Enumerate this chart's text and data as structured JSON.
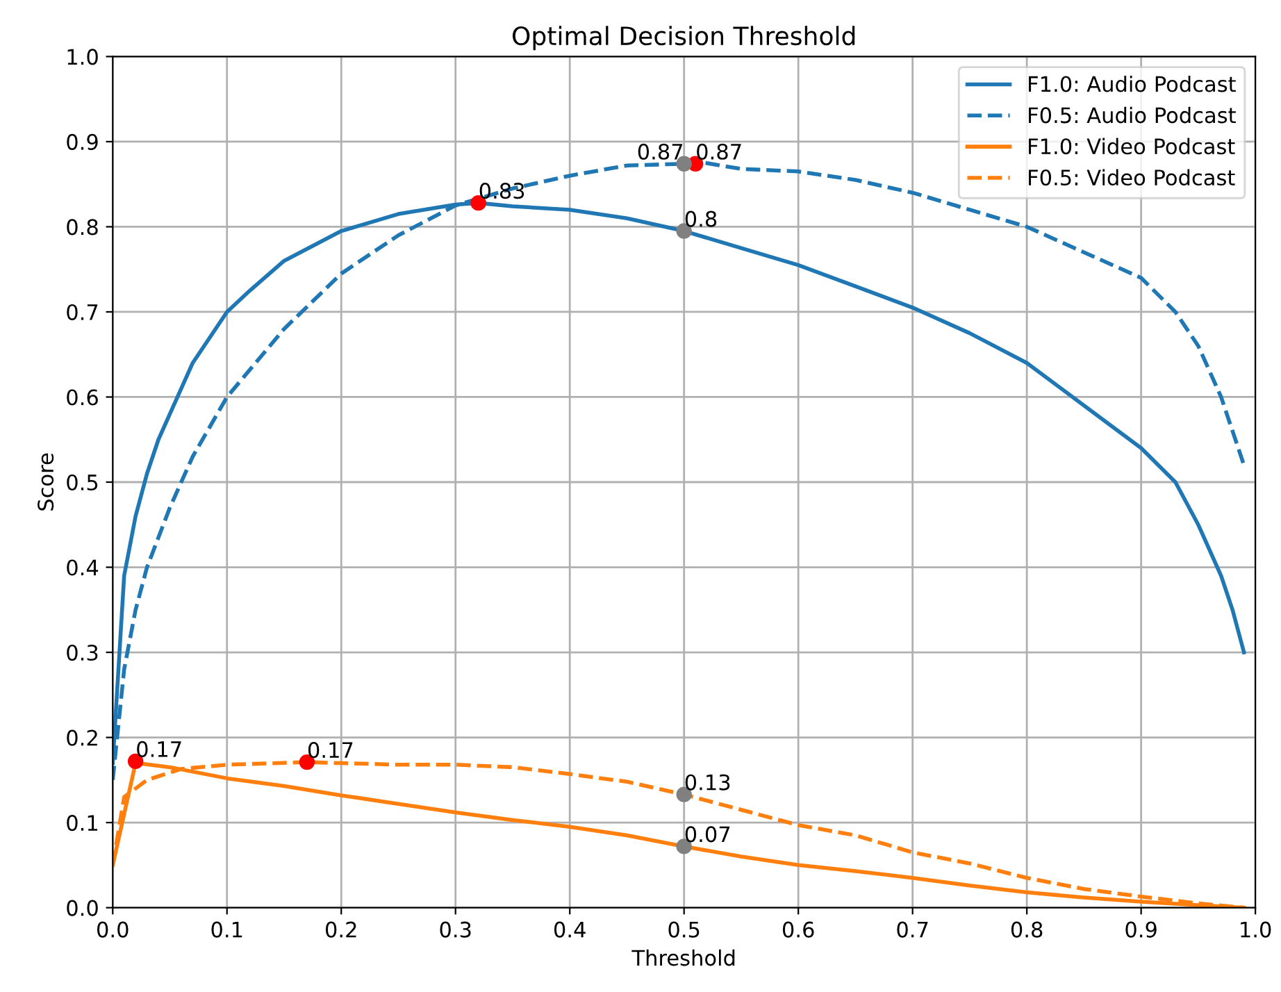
{
  "chart_data": {
    "type": "line",
    "title": "Optimal Decision Threshold",
    "xlabel": "Threshold",
    "ylabel": "Score",
    "xlim": [
      0,
      1
    ],
    "ylim": [
      0,
      1
    ],
    "xticks": [
      {
        "value": 0,
        "label": "0.0"
      },
      0.1,
      0.2,
      0.3,
      0.4,
      0.5,
      0.6,
      0.7,
      0.8,
      0.9,
      {
        "value": 1,
        "label": "1.0"
      }
    ],
    "yticks": [
      {
        "value": 0,
        "label": "0.0"
      },
      0.1,
      0.2,
      0.3,
      0.4,
      0.5,
      0.6,
      0.7,
      0.8,
      0.9,
      {
        "value": 1,
        "label": "1.0"
      }
    ],
    "grid": true,
    "legend": "top right",
    "marker": "none",
    "series": [
      {
        "name": "F1.0: Audio Podcast",
        "color": "#1f77b4",
        "line_style": "solid",
        "x": [
          0,
          0.01,
          0.02,
          0.03,
          0.04,
          0.05,
          0.06,
          0.07,
          0.08,
          0.1,
          0.12,
          0.15,
          0.2,
          0.25,
          0.3,
          0.32,
          0.35,
          0.4,
          0.45,
          0.5,
          0.55,
          0.6,
          0.65,
          0.7,
          0.75,
          0.8,
          0.85,
          0.9,
          0.93,
          0.95,
          0.97,
          0.98,
          0.99
        ],
        "values": [
          0.17,
          0.39,
          0.46,
          0.51,
          0.55,
          0.58,
          0.61,
          0.64,
          0.66,
          0.7,
          0.725,
          0.76,
          0.795,
          0.815,
          0.826,
          0.828,
          0.824,
          0.82,
          0.81,
          0.795,
          0.775,
          0.755,
          0.73,
          0.705,
          0.675,
          0.64,
          0.59,
          0.54,
          0.5,
          0.45,
          0.39,
          0.35,
          0.3
        ]
      },
      {
        "name": "F0.5: Audio Podcast",
        "color": "#1f77b4",
        "line_style": "dashed",
        "x": [
          0,
          0.01,
          0.02,
          0.03,
          0.05,
          0.07,
          0.1,
          0.15,
          0.2,
          0.25,
          0.3,
          0.35,
          0.4,
          0.45,
          0.5,
          0.51,
          0.55,
          0.6,
          0.65,
          0.7,
          0.75,
          0.8,
          0.85,
          0.9,
          0.93,
          0.95,
          0.97,
          0.99
        ],
        "values": [
          0.15,
          0.28,
          0.35,
          0.4,
          0.47,
          0.53,
          0.6,
          0.68,
          0.745,
          0.79,
          0.825,
          0.845,
          0.86,
          0.872,
          0.874,
          0.877,
          0.868,
          0.865,
          0.855,
          0.84,
          0.82,
          0.8,
          0.77,
          0.74,
          0.7,
          0.66,
          0.6,
          0.52
        ]
      },
      {
        "name": "F1.0: Video Podcast",
        "color": "#ff7f0e",
        "line_style": "solid",
        "x": [
          0,
          0.02,
          0.05,
          0.1,
          0.15,
          0.2,
          0.25,
          0.3,
          0.35,
          0.4,
          0.45,
          0.5,
          0.55,
          0.6,
          0.65,
          0.7,
          0.75,
          0.8,
          0.85,
          0.9,
          0.95,
          0.99
        ],
        "values": [
          0.05,
          0.17,
          0.165,
          0.152,
          0.143,
          0.132,
          0.122,
          0.112,
          0.103,
          0.095,
          0.085,
          0.072,
          0.06,
          0.05,
          0.043,
          0.035,
          0.026,
          0.018,
          0.012,
          0.007,
          0.003,
          0.0
        ]
      },
      {
        "name": "F0.5: Video Podcast",
        "color": "#ff7f0e",
        "line_style": "dashed",
        "x": [
          0,
          0.01,
          0.03,
          0.06,
          0.1,
          0.17,
          0.25,
          0.3,
          0.35,
          0.4,
          0.45,
          0.5,
          0.55,
          0.6,
          0.65,
          0.7,
          0.75,
          0.8,
          0.85,
          0.9,
          0.95,
          0.99
        ],
        "values": [
          0.05,
          0.13,
          0.15,
          0.163,
          0.168,
          0.171,
          0.168,
          0.168,
          0.165,
          0.157,
          0.148,
          0.133,
          0.115,
          0.097,
          0.085,
          0.065,
          0.052,
          0.035,
          0.022,
          0.013,
          0.005,
          0.0
        ]
      },
      {
        "type": "scatter",
        "marker": "circle",
        "color": "#ff0000",
        "x": [
          0.32,
          0.51,
          0.02,
          0.17
        ],
        "values": [
          0.828,
          0.874,
          0.172,
          0.171
        ],
        "value_labels": [
          "0.83",
          "0.87",
          "0.17",
          "0.17"
        ]
      },
      {
        "type": "scatter",
        "marker": "circle",
        "color": "#808080",
        "x": [
          0.5,
          0.5,
          0.5,
          0.5
        ],
        "values": [
          0.874,
          0.795,
          0.133,
          0.072
        ],
        "value_labels": [
          "0.87",
          "0.8",
          "0.13",
          "0.07"
        ]
      }
    ]
  }
}
